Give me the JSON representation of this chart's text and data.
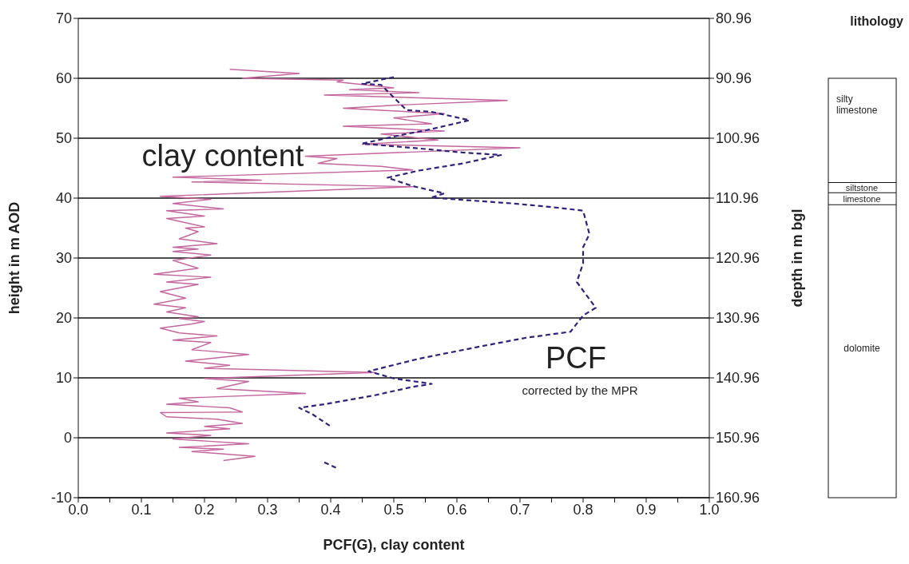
{
  "chart_data": [
    {
      "type": "line",
      "xlabel": "PCF(G), clay content",
      "ylabel": "height in m AOD",
      "y2label": "depth in m bgl",
      "xlim": [
        0,
        1
      ],
      "xticks": [
        {
          "value": 0,
          "label": "0.0"
        },
        {
          "value": 0.05,
          "label": null
        },
        0.1,
        {
          "value": 0.15,
          "label": null
        },
        0.2,
        {
          "value": 0.25,
          "label": null
        },
        0.3,
        {
          "value": 0.35,
          "label": null
        },
        0.4,
        {
          "value": 0.45,
          "label": null
        },
        0.5,
        {
          "value": 0.55,
          "label": null
        },
        0.6,
        {
          "value": 0.65,
          "label": null
        },
        0.7,
        {
          "value": 0.75,
          "label": null
        },
        0.8,
        {
          "value": 0.85,
          "label": null
        },
        0.9,
        {
          "value": 0.95,
          "label": null
        },
        {
          "value": 1,
          "label": "1.0"
        }
      ],
      "ylim": [
        -10,
        70
      ],
      "yticks": [
        -10,
        0,
        10,
        20,
        30,
        40,
        50,
        60,
        70
      ],
      "y2lim": [
        160.96,
        80.96
      ],
      "y2ticks": [
        160.96,
        150.96,
        140.96,
        130.96,
        120.96,
        110.96,
        100.96,
        90.96,
        80.96
      ],
      "grid": "y",
      "marker": "none",
      "series": [
        {
          "type": "line",
          "name": "clay content",
          "color": "#c4679f",
          "line_style": "solid",
          "x": [
            0.24,
            0.35,
            0.26,
            0.42,
            0.41,
            0.5,
            0.43,
            0.54,
            0.39,
            0.68,
            0.5,
            0.42,
            0.58,
            0.5,
            0.56,
            0.42,
            0.58,
            0.48,
            0.57,
            0.45,
            0.7,
            0.36,
            0.41,
            0.38,
            0.48,
            0.53,
            0.15,
            0.29,
            0.18,
            0.53,
            0.13,
            0.21,
            0.15,
            0.23,
            0.14,
            0.2,
            0.14,
            0.2,
            0.17,
            0.19,
            0.16,
            0.22,
            0.15,
            0.19,
            0.15,
            0.21,
            0.15,
            0.19,
            0.12,
            0.21,
            0.14,
            0.19,
            0.13,
            0.17,
            0.12,
            0.17,
            0.14,
            0.19,
            0.16,
            0.2,
            0.18,
            0.13,
            0.16,
            0.22,
            0.15,
            0.21,
            0.18,
            0.27,
            0.17,
            0.24,
            0.2,
            0.47,
            0.2,
            0.27,
            0.22,
            0.36,
            0.16,
            0.19,
            0.14,
            0.24,
            0.26,
            0.13,
            0.14,
            0.22,
            0.26,
            0.2,
            0.24,
            0.14,
            0.21,
            0.15,
            0.27,
            0.16,
            0.23,
            0.18,
            0.28,
            0.23
          ],
          "values": [
            61.5,
            60.8,
            60,
            59.7,
            59.4,
            58.4,
            58.1,
            57.6,
            57.2,
            56.3,
            55.5,
            55,
            54.1,
            53.4,
            52.4,
            52,
            51.2,
            50.7,
            49.7,
            49,
            48.4,
            47,
            46.6,
            45.8,
            45.3,
            44.7,
            43.5,
            43,
            42.7,
            41.9,
            40.3,
            39.8,
            39.1,
            38.2,
            37.9,
            37,
            36.6,
            35.2,
            35,
            34.4,
            33.2,
            32.4,
            31.8,
            31.5,
            31.1,
            30.5,
            29.6,
            28.3,
            27.3,
            26.8,
            26,
            25.6,
            24.4,
            23.3,
            22.3,
            21.7,
            21,
            20.2,
            19.9,
            19.4,
            19,
            18.3,
            17.5,
            17,
            16.3,
            15.9,
            14.7,
            13.9,
            12.8,
            12.1,
            11.6,
            10.9,
            9.9,
            9.4,
            8.2,
            7.4,
            6.6,
            6,
            5.6,
            5,
            4.3,
            4.2,
            3.5,
            3.1,
            2.4,
            1.9,
            1.5,
            0.8,
            0.4,
            -0.2,
            -1,
            -1.6,
            -1.9,
            -2.3,
            -3.1,
            -3.8
          ]
        },
        {
          "type": "line",
          "name": "PCF",
          "color": "#2e2378",
          "line_style": "dashed",
          "x": [
            0.5,
            0.45,
            0.48,
            0.52,
            0.56,
            0.62,
            0.55,
            0.51,
            0.45,
            0.55,
            0.61,
            0.67,
            0.61,
            0.54,
            0.49,
            0.53,
            0.58,
            0.56,
            0.61,
            0.69,
            0.76,
            0.8,
            0.81,
            0.8,
            0.8,
            0.79,
            0.82,
            0.8,
            0.78,
            0.71,
            0.64,
            0.54,
            0.46,
            0.5,
            0.56,
            0.53,
            0.47,
            0.39,
            0.35,
            0.37,
            0.4,
            null,
            0.39,
            0.41
          ],
          "values": [
            60.2,
            59.1,
            58.9,
            54.7,
            54.4,
            53,
            51.3,
            50.5,
            49.1,
            48.2,
            47.6,
            47.2,
            45.8,
            44.6,
            43.4,
            42,
            40.8,
            40.1,
            39.7,
            39.1,
            38.4,
            37.9,
            34,
            31.8,
            29.1,
            26,
            21.7,
            20.4,
            17.7,
            16.7,
            15.3,
            13.2,
            11.1,
            9.9,
            9,
            8.5,
            7.1,
            5.6,
            5,
            4,
            1.9,
            null,
            -4.1,
            -5.1
          ]
        }
      ],
      "annotations": [
        "corrected by the MPR"
      ]
    },
    {
      "type": "other",
      "title": "lithology",
      "annotations": [
        "silty limestone",
        "siltstone",
        "limestone",
        "dolomite"
      ]
    }
  ]
}
